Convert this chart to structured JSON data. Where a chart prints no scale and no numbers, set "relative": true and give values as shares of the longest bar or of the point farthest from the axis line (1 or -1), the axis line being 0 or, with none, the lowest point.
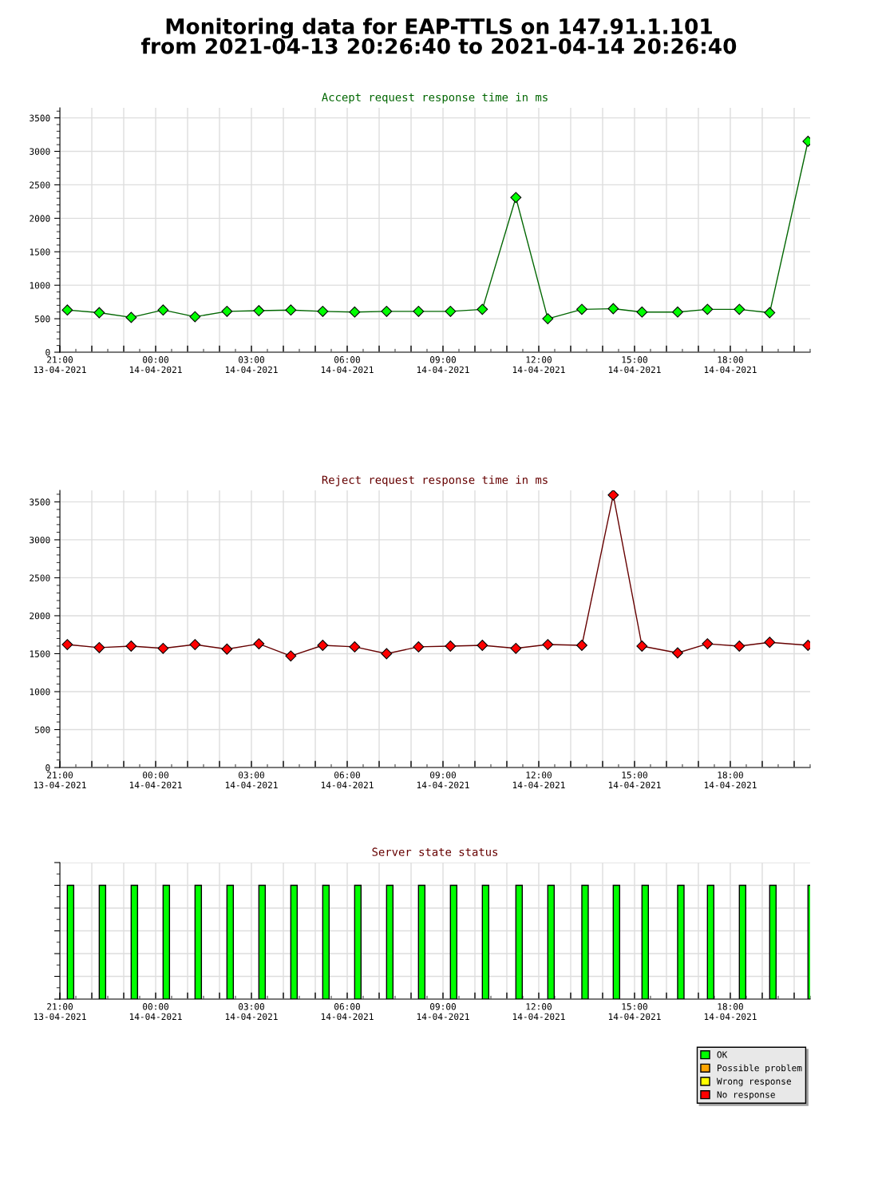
{
  "chart_data": [
    {
      "type": "other",
      "title": "Monitoring data for EAP-TTLS on 147.91.1.101\nfrom 2021-04-13 20:26:40 to 2021-04-14 20:26:40"
    },
    {
      "type": "line",
      "title": "Accept request response time in ms",
      "x": [
        "2021-04-13T21:14",
        "2021-04-13T22:14",
        "2021-04-13T23:14",
        "2021-04-14T00:14",
        "2021-04-14T01:14",
        "2021-04-14T02:14",
        "2021-04-14T03:14",
        "2021-04-14T04:14",
        "2021-04-14T05:14",
        "2021-04-14T06:14",
        "2021-04-14T07:14",
        "2021-04-14T08:14",
        "2021-04-14T09:14",
        "2021-04-14T10:14",
        "2021-04-14T11:17",
        "2021-04-14T12:17",
        "2021-04-14T13:21",
        "2021-04-14T14:20",
        "2021-04-14T15:14",
        "2021-04-14T16:21",
        "2021-04-14T17:17",
        "2021-04-14T18:17",
        "2021-04-14T19:14",
        "2021-04-14T20:26"
      ],
      "series": [
        {
          "color": "#00ff00",
          "values": [
            630,
            590,
            520,
            630,
            530,
            610,
            620,
            630,
            610,
            600,
            610,
            610,
            610,
            640,
            2310,
            500,
            640,
            650,
            600,
            600,
            640,
            640,
            590,
            3150
          ]
        }
      ],
      "xlim": [
        "2021-04-13T21:00",
        "2021-04-14T20:30"
      ],
      "xticks": [
        {
          "value": "2021-04-13T21:00",
          "label": "21:00\n13-04-2021"
        },
        {
          "value": "2021-04-13T22:00",
          "label": null
        },
        {
          "value": "2021-04-13T23:00",
          "label": null
        },
        {
          "value": "2021-04-14T00:00",
          "label": "00:00\n14-04-2021"
        },
        {
          "value": "2021-04-14T01:00",
          "label": null
        },
        {
          "value": "2021-04-14T02:00",
          "label": null
        },
        {
          "value": "2021-04-14T03:00",
          "label": "03:00\n14-04-2021"
        },
        {
          "value": "2021-04-14T04:00",
          "label": null
        },
        {
          "value": "2021-04-14T05:00",
          "label": null
        },
        {
          "value": "2021-04-14T06:00",
          "label": "06:00\n14-04-2021"
        },
        {
          "value": "2021-04-14T07:00",
          "label": null
        },
        {
          "value": "2021-04-14T08:00",
          "label": null
        },
        {
          "value": "2021-04-14T09:00",
          "label": "09:00\n14-04-2021"
        },
        {
          "value": "2021-04-14T10:00",
          "label": null
        },
        {
          "value": "2021-04-14T11:00",
          "label": null
        },
        {
          "value": "2021-04-14T12:00",
          "label": "12:00\n14-04-2021"
        },
        {
          "value": "2021-04-14T13:00",
          "label": null
        },
        {
          "value": "2021-04-14T14:00",
          "label": null
        },
        {
          "value": "2021-04-14T15:00",
          "label": "15:00\n14-04-2021"
        },
        {
          "value": "2021-04-14T16:00",
          "label": null
        },
        {
          "value": "2021-04-14T17:00",
          "label": null
        },
        {
          "value": "2021-04-14T18:00",
          "label": "18:00\n14-04-2021"
        },
        {
          "value": "2021-04-14T19:00",
          "label": null
        },
        {
          "value": "2021-04-14T20:00",
          "label": null
        }
      ],
      "ylim": [
        0,
        3650
      ],
      "yticks": [
        0,
        500,
        1000,
        1500,
        2000,
        2500,
        3000,
        3500
      ],
      "grid": true,
      "marker": "diamond",
      "line_style": "solid"
    },
    {
      "type": "line",
      "title": "Reject request response time in ms",
      "x": [
        "2021-04-13T21:14",
        "2021-04-13T22:14",
        "2021-04-13T23:14",
        "2021-04-14T00:14",
        "2021-04-14T01:14",
        "2021-04-14T02:14",
        "2021-04-14T03:14",
        "2021-04-14T04:14",
        "2021-04-14T05:14",
        "2021-04-14T06:14",
        "2021-04-14T07:14",
        "2021-04-14T08:14",
        "2021-04-14T09:14",
        "2021-04-14T10:14",
        "2021-04-14T11:17",
        "2021-04-14T12:17",
        "2021-04-14T13:21",
        "2021-04-14T14:20",
        "2021-04-14T15:14",
        "2021-04-14T16:21",
        "2021-04-14T17:17",
        "2021-04-14T18:17",
        "2021-04-14T19:14",
        "2021-04-14T20:26"
      ],
      "series": [
        {
          "color": "#ff0000",
          "values": [
            1620,
            1580,
            1600,
            1570,
            1620,
            1560,
            1630,
            1470,
            1610,
            1590,
            1500,
            1590,
            1600,
            1610,
            1570,
            1620,
            1610,
            3590,
            1600,
            1510,
            1630,
            1600,
            1650,
            1610
          ]
        }
      ],
      "xlim": [
        "2021-04-13T21:00",
        "2021-04-14T20:30"
      ],
      "xticks": [
        {
          "value": "2021-04-13T21:00",
          "label": "21:00\n13-04-2021"
        },
        {
          "value": "2021-04-13T22:00",
          "label": null
        },
        {
          "value": "2021-04-13T23:00",
          "label": null
        },
        {
          "value": "2021-04-14T00:00",
          "label": "00:00\n14-04-2021"
        },
        {
          "value": "2021-04-14T01:00",
          "label": null
        },
        {
          "value": "2021-04-14T02:00",
          "label": null
        },
        {
          "value": "2021-04-14T03:00",
          "label": "03:00\n14-04-2021"
        },
        {
          "value": "2021-04-14T04:00",
          "label": null
        },
        {
          "value": "2021-04-14T05:00",
          "label": null
        },
        {
          "value": "2021-04-14T06:00",
          "label": "06:00\n14-04-2021"
        },
        {
          "value": "2021-04-14T07:00",
          "label": null
        },
        {
          "value": "2021-04-14T08:00",
          "label": null
        },
        {
          "value": "2021-04-14T09:00",
          "label": "09:00\n14-04-2021"
        },
        {
          "value": "2021-04-14T10:00",
          "label": null
        },
        {
          "value": "2021-04-14T11:00",
          "label": null
        },
        {
          "value": "2021-04-14T12:00",
          "label": "12:00\n14-04-2021"
        },
        {
          "value": "2021-04-14T13:00",
          "label": null
        },
        {
          "value": "2021-04-14T14:00",
          "label": null
        },
        {
          "value": "2021-04-14T15:00",
          "label": "15:00\n14-04-2021"
        },
        {
          "value": "2021-04-14T16:00",
          "label": null
        },
        {
          "value": "2021-04-14T17:00",
          "label": null
        },
        {
          "value": "2021-04-14T18:00",
          "label": "18:00\n14-04-2021"
        },
        {
          "value": "2021-04-14T19:00",
          "label": null
        },
        {
          "value": "2021-04-14T20:00",
          "label": null
        }
      ],
      "ylim": [
        0,
        3650
      ],
      "yticks": [
        0,
        500,
        1000,
        1500,
        2000,
        2500,
        3000,
        3500
      ],
      "grid": true,
      "marker": "diamond",
      "line_style": "solid"
    },
    {
      "type": "bar",
      "title": "Server state status",
      "relative": true,
      "x": [
        "2021-04-13T21:14",
        "2021-04-13T22:14",
        "2021-04-13T23:14",
        "2021-04-14T00:14",
        "2021-04-14T01:14",
        "2021-04-14T02:14",
        "2021-04-14T03:14",
        "2021-04-14T04:14",
        "2021-04-14T05:14",
        "2021-04-14T06:14",
        "2021-04-14T07:14",
        "2021-04-14T08:14",
        "2021-04-14T09:14",
        "2021-04-14T10:14",
        "2021-04-14T11:17",
        "2021-04-14T12:17",
        "2021-04-14T13:21",
        "2021-04-14T14:20",
        "2021-04-14T15:14",
        "2021-04-14T16:21",
        "2021-04-14T17:17",
        "2021-04-14T18:17",
        "2021-04-14T19:14",
        "2021-04-14T20:26"
      ],
      "series": [
        {
          "name": "OK",
          "color": "#00ff00",
          "values": [
            1,
            1,
            1,
            1,
            1,
            1,
            1,
            1,
            1,
            1,
            1,
            1,
            1,
            1,
            1,
            1,
            1,
            1,
            1,
            1,
            1,
            1,
            1,
            1
          ]
        },
        {
          "name": "Possible problem",
          "color": "#ffa500",
          "values": [
            null,
            null,
            null,
            null,
            null,
            null,
            null,
            null,
            null,
            null,
            null,
            null,
            null,
            null,
            null,
            null,
            null,
            null,
            null,
            null,
            null,
            null,
            null,
            null
          ]
        },
        {
          "name": "Wrong response",
          "color": "#ffff00",
          "values": [
            null,
            null,
            null,
            null,
            null,
            null,
            null,
            null,
            null,
            null,
            null,
            null,
            null,
            null,
            null,
            null,
            null,
            null,
            null,
            null,
            null,
            null,
            null,
            null
          ]
        },
        {
          "name": "No response",
          "color": "#ff0000",
          "values": [
            null,
            null,
            null,
            null,
            null,
            null,
            null,
            null,
            null,
            null,
            null,
            null,
            null,
            null,
            null,
            null,
            null,
            null,
            null,
            null,
            null,
            null,
            null,
            null
          ]
        }
      ],
      "xlim": [
        "2021-04-13T21:00",
        "2021-04-14T20:30"
      ],
      "xticks": [
        {
          "value": "2021-04-13T21:00",
          "label": "21:00\n13-04-2021"
        },
        {
          "value": "2021-04-13T22:00",
          "label": null
        },
        {
          "value": "2021-04-13T23:00",
          "label": null
        },
        {
          "value": "2021-04-14T00:00",
          "label": "00:00\n14-04-2021"
        },
        {
          "value": "2021-04-14T01:00",
          "label": null
        },
        {
          "value": "2021-04-14T02:00",
          "label": null
        },
        {
          "value": "2021-04-14T03:00",
          "label": "03:00\n14-04-2021"
        },
        {
          "value": "2021-04-14T04:00",
          "label": null
        },
        {
          "value": "2021-04-14T05:00",
          "label": null
        },
        {
          "value": "2021-04-14T06:00",
          "label": "06:00\n14-04-2021"
        },
        {
          "value": "2021-04-14T07:00",
          "label": null
        },
        {
          "value": "2021-04-14T08:00",
          "label": null
        },
        {
          "value": "2021-04-14T09:00",
          "label": "09:00\n14-04-2021"
        },
        {
          "value": "2021-04-14T10:00",
          "label": null
        },
        {
          "value": "2021-04-14T11:00",
          "label": null
        },
        {
          "value": "2021-04-14T12:00",
          "label": "12:00\n14-04-2021"
        },
        {
          "value": "2021-04-14T13:00",
          "label": null
        },
        {
          "value": "2021-04-14T14:00",
          "label": null
        },
        {
          "value": "2021-04-14T15:00",
          "label": "15:00\n14-04-2021"
        },
        {
          "value": "2021-04-14T16:00",
          "label": null
        },
        {
          "value": "2021-04-14T17:00",
          "label": null
        },
        {
          "value": "2021-04-14T18:00",
          "label": "18:00\n14-04-2021"
        },
        {
          "value": "2021-04-14T19:00",
          "label": null
        },
        {
          "value": "2021-04-14T20:00",
          "label": null
        }
      ],
      "tick_labels": "x",
      "grid": true,
      "legend": "bottom right"
    }
  ]
}
